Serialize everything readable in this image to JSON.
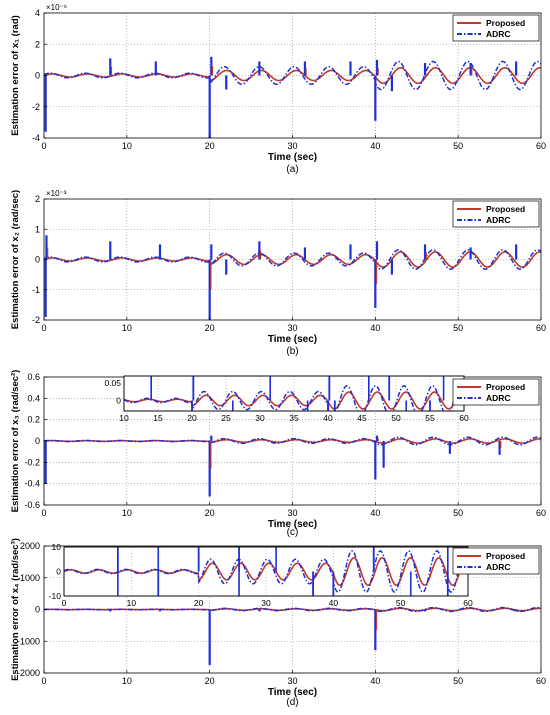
{
  "colors": {
    "proposed": "#c0392b",
    "adrc": "#1f2fd6"
  },
  "chart_data": [
    {
      "type": "line",
      "panel_label": "(a)",
      "xlabel": "Time (sec)",
      "ylabel": "Estimation error of x₁ (rad)",
      "exponent": "×10⁻⁶",
      "xlim": [
        0,
        60
      ],
      "ylim": [
        -4,
        4
      ],
      "xticks": [
        0,
        10,
        20,
        30,
        40,
        50,
        60
      ],
      "yticks": [
        -4,
        -2,
        0,
        2,
        4
      ],
      "grid": true,
      "legend": "top-right",
      "series": [
        {
          "name": "Proposed",
          "amp_growth": [
            0.1,
            0.5
          ],
          "period": 4.2
        },
        {
          "name": "ADRC",
          "amp_growth": [
            0.15,
            0.9
          ],
          "period": 4.2
        }
      ],
      "spikes": [
        {
          "x": 0.2,
          "y": -3.6
        },
        {
          "x": 8,
          "y": 1.1
        },
        {
          "x": 13.5,
          "y": 0.9
        },
        {
          "x": 20,
          "y": -4
        },
        {
          "x": 20.2,
          "y": 1.2
        },
        {
          "x": 22,
          "y": -0.9
        },
        {
          "x": 26,
          "y": 0.9
        },
        {
          "x": 31.5,
          "y": 0.9
        },
        {
          "x": 37,
          "y": 0.9
        },
        {
          "x": 40,
          "y": -2.9
        },
        {
          "x": 40.2,
          "y": 1.0
        },
        {
          "x": 42,
          "y": -1.0
        },
        {
          "x": 46,
          "y": 0.8
        },
        {
          "x": 51.5,
          "y": 0.8
        },
        {
          "x": 57,
          "y": 0.9
        }
      ]
    },
    {
      "type": "line",
      "panel_label": "(b)",
      "xlabel": "Time (sec)",
      "ylabel": "Estimation error of x₂ (rad/sec)",
      "exponent": "×10⁻³",
      "xlim": [
        0,
        60
      ],
      "ylim": [
        -2,
        2
      ],
      "xticks": [
        0,
        10,
        20,
        30,
        40,
        50,
        60
      ],
      "yticks": [
        -2,
        -1,
        0,
        1,
        2
      ],
      "grid": true,
      "legend": "top-right",
      "series": [
        {
          "name": "Proposed",
          "amp_growth": [
            0.05,
            0.25
          ],
          "period": 4.2
        },
        {
          "name": "ADRC",
          "amp_growth": [
            0.08,
            0.32
          ],
          "period": 4.2
        }
      ],
      "spikes": [
        {
          "x": 0.2,
          "y": -1.9
        },
        {
          "x": 0.3,
          "y": 0.8
        },
        {
          "x": 8,
          "y": 0.6
        },
        {
          "x": 14,
          "y": 0.5
        },
        {
          "x": 20,
          "y": -2
        },
        {
          "x": 20.2,
          "y": 0.5
        },
        {
          "x": 22,
          "y": -0.5
        },
        {
          "x": 26,
          "y": 0.6
        },
        {
          "x": 31.5,
          "y": 0.4
        },
        {
          "x": 37,
          "y": 0.5
        },
        {
          "x": 40,
          "y": -1.6
        },
        {
          "x": 40.2,
          "y": 0.6
        },
        {
          "x": 42,
          "y": -0.5
        },
        {
          "x": 46,
          "y": 0.5
        },
        {
          "x": 51.5,
          "y": 0.4
        },
        {
          "x": 57,
          "y": 0.5
        }
      ]
    },
    {
      "type": "line",
      "panel_label": "(c)",
      "xlabel": "Time (sec)",
      "ylabel": "Estimation error of x₃ (rad/sec²)",
      "exponent": "",
      "xlim": [
        0,
        60
      ],
      "ylim": [
        -0.6,
        0.6
      ],
      "xticks": [
        0,
        10,
        20,
        30,
        40,
        50,
        60
      ],
      "yticks": [
        -0.6,
        -0.4,
        -0.2,
        0,
        0.2,
        0.4,
        0.6
      ],
      "grid": true,
      "legend": "top-right",
      "series": [
        {
          "name": "Proposed",
          "amp_growth": [
            0.003,
            0.02
          ],
          "period": 4.2
        },
        {
          "name": "ADRC",
          "amp_growth": [
            0.005,
            0.035
          ],
          "period": 4.2
        }
      ],
      "spikes": [
        {
          "x": 0.2,
          "y": -0.4
        },
        {
          "x": 20,
          "y": -0.52
        },
        {
          "x": 20.2,
          "y": 0.05
        },
        {
          "x": 40,
          "y": -0.36
        },
        {
          "x": 40.2,
          "y": 0.05
        },
        {
          "x": 41,
          "y": -0.25
        },
        {
          "x": 49,
          "y": -0.12
        },
        {
          "x": 55,
          "y": -0.13
        }
      ],
      "inset": {
        "xlim": [
          10,
          60
        ],
        "ylim": [
          -0.03,
          0.07
        ],
        "xticks": [
          10,
          15,
          20,
          25,
          30,
          35,
          40,
          45,
          50,
          55,
          60
        ],
        "yticks": [
          0,
          0.05
        ],
        "ytick_labels": [
          "0",
          "0.05"
        ]
      }
    },
    {
      "type": "line",
      "panel_label": "(d)",
      "xlabel": "Time (sec)",
      "ylabel": "Estimation error of x₄ (rad/sec³)",
      "exponent": "",
      "xlim": [
        0,
        60
      ],
      "ylim": [
        -2000,
        2000
      ],
      "xticks": [
        0,
        10,
        20,
        30,
        40,
        50,
        60
      ],
      "yticks": [
        -2000,
        -1000,
        0,
        1000,
        2000
      ],
      "grid": true,
      "legend": "top-right",
      "series": [
        {
          "name": "Proposed",
          "amp_growth": [
            5,
            40
          ],
          "period": 4.2
        },
        {
          "name": "ADRC",
          "amp_growth": [
            6,
            60
          ],
          "period": 4.2
        }
      ],
      "spikes": [
        {
          "x": 20,
          "y": -1750
        },
        {
          "x": 40,
          "y": -1280
        },
        {
          "x": 8,
          "y": -60
        },
        {
          "x": 14,
          "y": -60
        },
        {
          "x": 26,
          "y": -60
        },
        {
          "x": 37,
          "y": -60
        },
        {
          "x": 46,
          "y": -60
        },
        {
          "x": 57,
          "y": -60
        }
      ],
      "inset": {
        "xlim": [
          0,
          60
        ],
        "ylim": [
          -10,
          10
        ],
        "xticks": [
          0,
          10,
          20,
          30,
          40,
          50,
          60
        ],
        "yticks": [
          -10,
          0,
          10
        ],
        "ytick_labels": [
          "-10",
          "0",
          "10"
        ]
      }
    }
  ]
}
